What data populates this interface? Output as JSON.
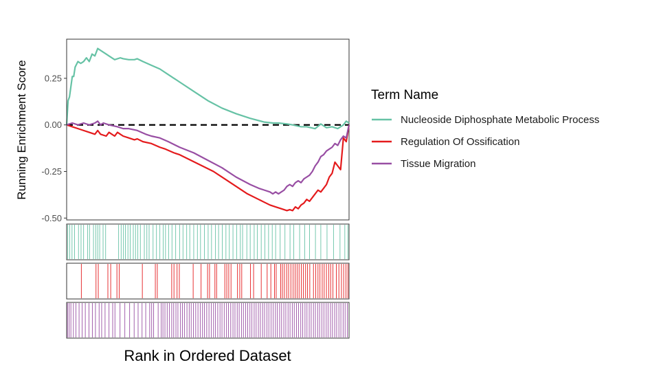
{
  "chart_data": {
    "type": "line",
    "xlabel": "Rank in Ordered Dataset",
    "ylabel": "Running Enrichment Score",
    "ylim": [
      -0.51,
      0.46
    ],
    "xlim": [
      0,
      100
    ],
    "yticks": [
      {
        "value": 0.25,
        "label": "0.25"
      },
      {
        "value": 0.0,
        "label": "0.00"
      },
      {
        "value": -0.25,
        "label": "-0.25"
      },
      {
        "value": -0.5,
        "label": "-0.50"
      }
    ],
    "reference_line": {
      "y": 0,
      "style": "dashed"
    },
    "grid": false,
    "legend": {
      "title": "Term Name",
      "placement": "right",
      "entries": [
        "Nucleoside Diphosphate Metabolic Process",
        "Regulation Of Ossification",
        "Tissue Migration"
      ]
    },
    "series": [
      {
        "name": "Nucleoside Diphosphate Metabolic Process",
        "color": "#66C2A5",
        "points": [
          [
            0,
            0.0
          ],
          [
            0.5,
            0.13
          ],
          [
            1,
            0.15
          ],
          [
            2,
            0.26
          ],
          [
            2.5,
            0.26
          ],
          [
            3,
            0.31
          ],
          [
            4,
            0.34
          ],
          [
            5,
            0.33
          ],
          [
            6,
            0.34
          ],
          [
            7,
            0.36
          ],
          [
            8,
            0.34
          ],
          [
            8.5,
            0.36
          ],
          [
            9,
            0.38
          ],
          [
            10,
            0.37
          ],
          [
            11,
            0.41
          ],
          [
            12,
            0.4
          ],
          [
            14,
            0.38
          ],
          [
            15,
            0.37
          ],
          [
            17,
            0.35
          ],
          [
            19,
            0.36
          ],
          [
            20,
            0.355
          ],
          [
            22,
            0.35
          ],
          [
            24,
            0.35
          ],
          [
            25,
            0.355
          ],
          [
            27,
            0.34
          ],
          [
            30,
            0.32
          ],
          [
            33,
            0.3
          ],
          [
            36,
            0.27
          ],
          [
            40,
            0.23
          ],
          [
            45,
            0.18
          ],
          [
            50,
            0.13
          ],
          [
            55,
            0.09
          ],
          [
            60,
            0.06
          ],
          [
            65,
            0.035
          ],
          [
            70,
            0.015
          ],
          [
            73,
            0.01
          ],
          [
            75,
            0.01
          ],
          [
            78,
            0.005
          ],
          [
            80,
            0.0
          ],
          [
            83,
            -0.01
          ],
          [
            85,
            -0.01
          ],
          [
            88,
            -0.02
          ],
          [
            90,
            0.005
          ],
          [
            92,
            -0.015
          ],
          [
            94,
            -0.01
          ],
          [
            96,
            -0.02
          ],
          [
            98,
            0.0
          ],
          [
            99,
            0.02
          ],
          [
            100,
            0.01
          ]
        ]
      },
      {
        "name": "Regulation Of Ossification",
        "color": "#E41A1C",
        "points": [
          [
            0,
            0.0
          ],
          [
            2,
            -0.01
          ],
          [
            4,
            -0.02
          ],
          [
            6,
            -0.03
          ],
          [
            8,
            -0.04
          ],
          [
            10,
            -0.05
          ],
          [
            11,
            -0.03
          ],
          [
            12,
            -0.05
          ],
          [
            14,
            -0.06
          ],
          [
            15,
            -0.04
          ],
          [
            16,
            -0.05
          ],
          [
            17,
            -0.06
          ],
          [
            18,
            -0.04
          ],
          [
            19,
            -0.05
          ],
          [
            20,
            -0.06
          ],
          [
            22,
            -0.07
          ],
          [
            24,
            -0.08
          ],
          [
            25,
            -0.075
          ],
          [
            27,
            -0.09
          ],
          [
            30,
            -0.1
          ],
          [
            33,
            -0.12
          ],
          [
            35,
            -0.13
          ],
          [
            38,
            -0.15
          ],
          [
            40,
            -0.16
          ],
          [
            44,
            -0.19
          ],
          [
            48,
            -0.22
          ],
          [
            52,
            -0.25
          ],
          [
            56,
            -0.29
          ],
          [
            60,
            -0.33
          ],
          [
            64,
            -0.37
          ],
          [
            68,
            -0.4
          ],
          [
            72,
            -0.43
          ],
          [
            74,
            -0.44
          ],
          [
            76,
            -0.45
          ],
          [
            78,
            -0.46
          ],
          [
            79,
            -0.455
          ],
          [
            80,
            -0.46
          ],
          [
            81,
            -0.44
          ],
          [
            82,
            -0.45
          ],
          [
            83,
            -0.43
          ],
          [
            84,
            -0.42
          ],
          [
            85,
            -0.4
          ],
          [
            86,
            -0.41
          ],
          [
            87,
            -0.39
          ],
          [
            88,
            -0.37
          ],
          [
            89,
            -0.35
          ],
          [
            90,
            -0.36
          ],
          [
            91,
            -0.34
          ],
          [
            92,
            -0.32
          ],
          [
            93,
            -0.28
          ],
          [
            94,
            -0.26
          ],
          [
            95,
            -0.2
          ],
          [
            96,
            -0.22
          ],
          [
            97,
            -0.24
          ],
          [
            98,
            -0.07
          ],
          [
            99,
            -0.09
          ],
          [
            100,
            0.0
          ]
        ]
      },
      {
        "name": "Tissue Migration",
        "color": "#984EA3",
        "points": [
          [
            0,
            0.0
          ],
          [
            2,
            0.01
          ],
          [
            4,
            0.0
          ],
          [
            6,
            0.01
          ],
          [
            8,
            0.0
          ],
          [
            10,
            0.01
          ],
          [
            11,
            0.02
          ],
          [
            12,
            0.0
          ],
          [
            13,
            0.01
          ],
          [
            15,
            0.0
          ],
          [
            18,
            -0.01
          ],
          [
            20,
            -0.02
          ],
          [
            22,
            -0.02
          ],
          [
            25,
            -0.03
          ],
          [
            28,
            -0.05
          ],
          [
            30,
            -0.06
          ],
          [
            33,
            -0.07
          ],
          [
            36,
            -0.09
          ],
          [
            40,
            -0.12
          ],
          [
            45,
            -0.15
          ],
          [
            50,
            -0.19
          ],
          [
            55,
            -0.23
          ],
          [
            60,
            -0.28
          ],
          [
            65,
            -0.32
          ],
          [
            68,
            -0.34
          ],
          [
            70,
            -0.35
          ],
          [
            72,
            -0.36
          ],
          [
            73,
            -0.37
          ],
          [
            74,
            -0.36
          ],
          [
            75,
            -0.37
          ],
          [
            76,
            -0.36
          ],
          [
            77,
            -0.35
          ],
          [
            78,
            -0.33
          ],
          [
            79,
            -0.32
          ],
          [
            80,
            -0.33
          ],
          [
            81,
            -0.31
          ],
          [
            82,
            -0.3
          ],
          [
            83,
            -0.31
          ],
          [
            84,
            -0.29
          ],
          [
            85,
            -0.28
          ],
          [
            86,
            -0.27
          ],
          [
            87,
            -0.25
          ],
          [
            88,
            -0.22
          ],
          [
            89,
            -0.2
          ],
          [
            90,
            -0.17
          ],
          [
            91,
            -0.16
          ],
          [
            92,
            -0.14
          ],
          [
            93,
            -0.13
          ],
          [
            94,
            -0.12
          ],
          [
            95,
            -0.1
          ],
          [
            96,
            -0.11
          ],
          [
            97,
            -0.08
          ],
          [
            98,
            -0.06
          ],
          [
            99,
            -0.07
          ],
          [
            100,
            0.0
          ]
        ]
      }
    ],
    "hits": [
      {
        "name": "Nucleoside Diphosphate Metabolic Process",
        "color": "#66C2A5",
        "positions": [
          0.4,
          1.1,
          1.9,
          2.8,
          4.2,
          5.1,
          6.0,
          7.4,
          8.1,
          9.5,
          10.3,
          11.0,
          11.7,
          12.9,
          13.8,
          18.4,
          19.3,
          20.1,
          20.8,
          21.7,
          22.5,
          23.6,
          24.4,
          25.2,
          26.1,
          27.5,
          28.4,
          29.2,
          30.6,
          31.8,
          33.0,
          34.2,
          35.0,
          36.1,
          37.3,
          38.6,
          40.0,
          41.2,
          42.5,
          43.6,
          45.0,
          46.3,
          47.4,
          48.8,
          50.1,
          51.3,
          52.7,
          53.8,
          55.1,
          56.4,
          57.6,
          58.9,
          60.2,
          61.5,
          62.3,
          63.8,
          65.0,
          66.4,
          67.5,
          68.9,
          70.2,
          71.5,
          72.8,
          74.0,
          75.6,
          77.3,
          79.1,
          80.4,
          82.5,
          84.3,
          86.0,
          88.1,
          90.0,
          92.2,
          94.5,
          96.8,
          98.5,
          99.6
        ]
      },
      {
        "name": "Regulation Of Ossification",
        "color": "#E41A1C",
        "positions": [
          5.2,
          10.4,
          11.2,
          14.6,
          15.6,
          17.8,
          18.6,
          26.8,
          31.4,
          32.1,
          37.2,
          38.0,
          39.1,
          39.9,
          44.8,
          47.6,
          49.9,
          50.6,
          52.5,
          53.1,
          56.0,
          56.7,
          57.4,
          58.2,
          60.5,
          61.3,
          62.0,
          65.1,
          66.2,
          68.9,
          71.0,
          72.3,
          73.6,
          74.2,
          75.8,
          76.4,
          77.1,
          77.9,
          78.6,
          79.4,
          80.2,
          80.9,
          81.6,
          82.3,
          83.1,
          83.8,
          84.6,
          85.3,
          86.1,
          87.4,
          88.2,
          89.0,
          89.7,
          90.5,
          91.2,
          92.0,
          92.8,
          93.5,
          94.3,
          95.5,
          96.4,
          97.3,
          98.1,
          98.9,
          99.6
        ]
      },
      {
        "name": "Tissue Migration",
        "color": "#984EA3",
        "positions": [
          0.3,
          0.9,
          1.5,
          2.4,
          3.3,
          4.4,
          5.5,
          6.6,
          7.9,
          9.1,
          10.2,
          11.5,
          12.4,
          13.6,
          15.0,
          16.3,
          17.1,
          18.9,
          20.6,
          22.3,
          23.9,
          25.3,
          26.7,
          28.0,
          29.4,
          30.1,
          30.8,
          32.4,
          33.5,
          34.1,
          34.8,
          35.6,
          36.4,
          37.2,
          37.9,
          38.7,
          39.4,
          40.3,
          41.0,
          41.7,
          42.6,
          43.4,
          44.1,
          44.9,
          45.7,
          46.5,
          47.3,
          48.1,
          48.8,
          49.6,
          50.4,
          51.2,
          52.0,
          52.7,
          53.5,
          54.3,
          55.0,
          55.8,
          56.6,
          57.3,
          58.1,
          58.9,
          59.6,
          60.4,
          61.1,
          61.9,
          62.6,
          63.4,
          64.1,
          64.9,
          65.6,
          66.4,
          67.1,
          67.9,
          68.6,
          69.4,
          70.1,
          70.9,
          71.6,
          72.4,
          73.1,
          73.9,
          74.6,
          75.4,
          76.1,
          76.9,
          77.6,
          78.4,
          79.1,
          79.9,
          80.6,
          81.4,
          82.1,
          82.9,
          83.6,
          84.4,
          85.1,
          85.9,
          86.6,
          87.4,
          88.1,
          88.9,
          89.6,
          90.4,
          91.1,
          91.9,
          92.6,
          93.4,
          94.1,
          94.9,
          95.6,
          96.4,
          97.1,
          97.9,
          98.6,
          99.4
        ]
      }
    ]
  }
}
